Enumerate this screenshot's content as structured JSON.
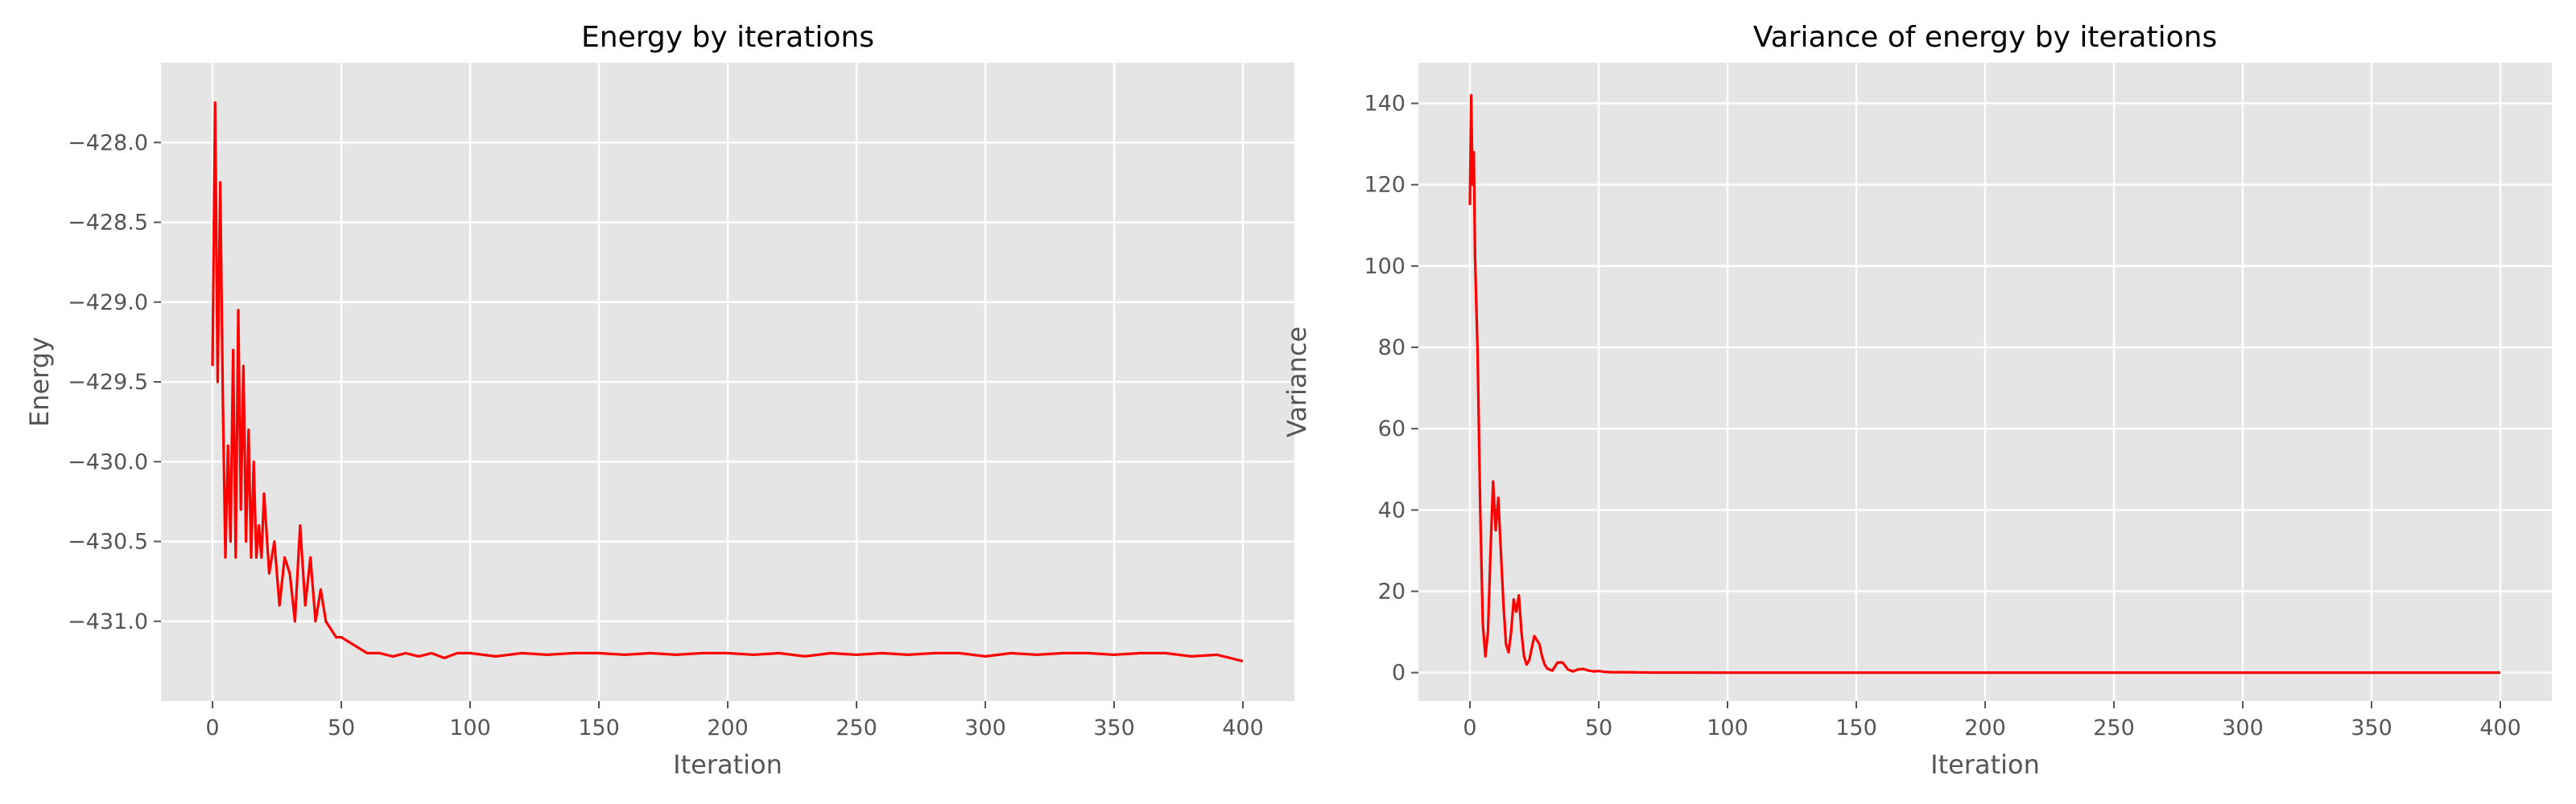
{
  "colors": {
    "figure_bg": "#ffffff",
    "axes_bg": "#e5e5e5",
    "grid": "#ffffff",
    "line": "#ff0000",
    "tick_text": "#555555",
    "title_text": "#000000"
  },
  "chart_data": [
    {
      "type": "line",
      "title": "Energy by iterations",
      "xlabel": "Iteration",
      "ylabel": "Energy",
      "xlim": [
        -20,
        420
      ],
      "ylim": [
        -431.5,
        -427.5
      ],
      "xticks": [
        0,
        50,
        100,
        150,
        200,
        250,
        300,
        350,
        400
      ],
      "xtick_labels": [
        "0",
        "50",
        "100",
        "150",
        "200",
        "250",
        "300",
        "350",
        "400"
      ],
      "yticks": [
        -428.0,
        -428.5,
        -429.0,
        -429.5,
        -430.0,
        -430.5,
        -431.0
      ],
      "ytick_labels": [
        "−428.0",
        "−428.5",
        "−429.0",
        "−429.5",
        "−430.0",
        "−430.5",
        "−431.0"
      ],
      "grid": true,
      "series": [
        {
          "color": "#ff0000",
          "x": [
            0,
            1,
            2,
            3,
            4,
            5,
            6,
            7,
            8,
            9,
            10,
            11,
            12,
            13,
            14,
            15,
            16,
            17,
            18,
            19,
            20,
            22,
            24,
            26,
            28,
            30,
            32,
            34,
            36,
            38,
            40,
            42,
            44,
            46,
            48,
            50,
            55,
            60,
            65,
            70,
            75,
            80,
            85,
            90,
            95,
            100,
            110,
            120,
            130,
            140,
            150,
            160,
            170,
            180,
            190,
            200,
            210,
            220,
            230,
            240,
            250,
            260,
            270,
            280,
            290,
            300,
            310,
            320,
            330,
            340,
            350,
            360,
            370,
            380,
            390,
            400
          ],
          "y": [
            -429.4,
            -427.75,
            -429.5,
            -428.25,
            -429.6,
            -430.6,
            -429.9,
            -430.5,
            -429.3,
            -430.6,
            -429.05,
            -430.3,
            -429.4,
            -430.5,
            -429.8,
            -430.6,
            -430.0,
            -430.6,
            -430.4,
            -430.6,
            -430.2,
            -430.7,
            -430.5,
            -430.9,
            -430.6,
            -430.7,
            -431.0,
            -430.4,
            -430.9,
            -430.6,
            -431.0,
            -430.8,
            -431.0,
            -431.05,
            -431.1,
            -431.1,
            -431.15,
            -431.2,
            -431.2,
            -431.22,
            -431.2,
            -431.22,
            -431.2,
            -431.23,
            -431.2,
            -431.2,
            -431.22,
            -431.2,
            -431.21,
            -431.2,
            -431.2,
            -431.21,
            -431.2,
            -431.21,
            -431.2,
            -431.2,
            -431.21,
            -431.2,
            -431.22,
            -431.2,
            -431.21,
            -431.2,
            -431.21,
            -431.2,
            -431.2,
            -431.22,
            -431.2,
            -431.21,
            -431.2,
            -431.2,
            -431.21,
            -431.2,
            -431.2,
            -431.22,
            -431.21,
            -431.25
          ]
        }
      ]
    },
    {
      "type": "line",
      "title": "Variance of energy by iterations",
      "xlabel": "Iteration",
      "ylabel": "Variance",
      "xlim": [
        -20,
        420
      ],
      "ylim": [
        -7,
        150
      ],
      "xticks": [
        0,
        50,
        100,
        150,
        200,
        250,
        300,
        350,
        400
      ],
      "xtick_labels": [
        "0",
        "50",
        "100",
        "150",
        "200",
        "250",
        "300",
        "350",
        "400"
      ],
      "yticks": [
        0,
        20,
        40,
        60,
        80,
        100,
        120,
        140
      ],
      "ytick_labels": [
        "0",
        "20",
        "40",
        "60",
        "80",
        "100",
        "120",
        "140"
      ],
      "grid": true,
      "series": [
        {
          "color": "#ff0000",
          "x": [
            0,
            0.5,
            1,
            1.5,
            2,
            3,
            4,
            5,
            6,
            7,
            8,
            9,
            10,
            11,
            12,
            13,
            14,
            15,
            16,
            17,
            18,
            19,
            20,
            21,
            22,
            23,
            24,
            25,
            26,
            27,
            28,
            29,
            30,
            32,
            34,
            36,
            38,
            40,
            42,
            44,
            46,
            48,
            50,
            52,
            55,
            60,
            65,
            70,
            80,
            100,
            150,
            200,
            250,
            300,
            350,
            400
          ],
          "y": [
            115,
            142,
            120,
            128,
            102,
            78,
            40,
            12,
            4,
            10,
            30,
            47,
            35,
            43,
            30,
            17,
            7,
            5,
            10,
            18,
            15,
            19,
            10,
            4,
            2,
            3,
            6,
            9,
            8,
            7,
            4,
            2,
            1,
            0.5,
            2.5,
            2.5,
            0.8,
            0.3,
            0.8,
            0.9,
            0.5,
            0.3,
            0.4,
            0.2,
            0.1,
            0.1,
            0.05,
            0.02,
            0.01,
            0,
            0,
            0,
            0,
            0,
            0,
            0
          ]
        }
      ]
    }
  ]
}
